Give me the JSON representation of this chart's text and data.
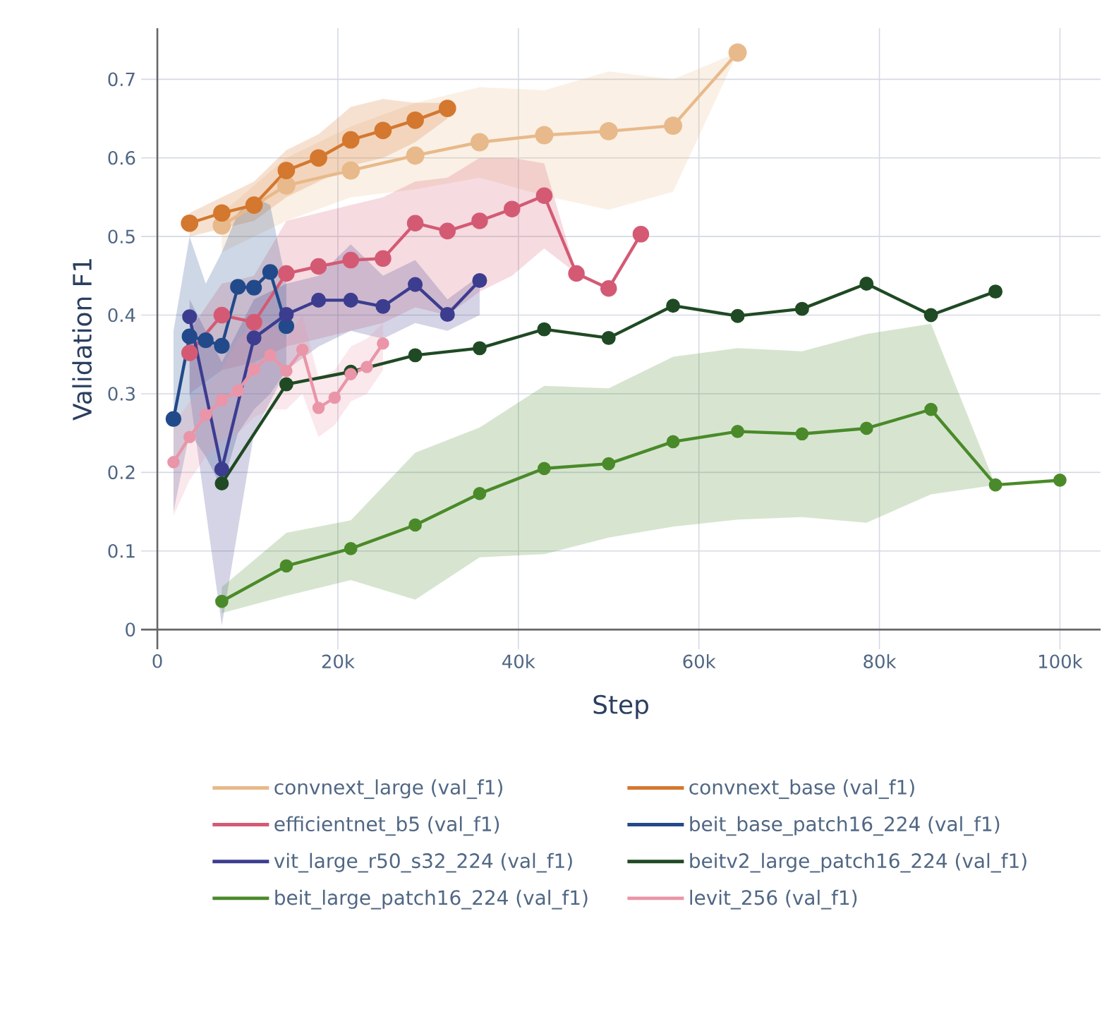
{
  "chart_data": {
    "type": "line",
    "xlabel": "Step",
    "ylabel": "Validation F1",
    "marker": "circle",
    "line_style": "solid",
    "grid": true,
    "legend": "bottom",
    "xlim": [
      -1800,
      104500
    ],
    "ylim": [
      -0.025,
      0.765
    ],
    "xticks": [
      0,
      {
        "value": 20000,
        "label": "20k"
      },
      {
        "value": 40000,
        "label": "40k"
      },
      {
        "value": 60000,
        "label": "60k"
      },
      {
        "value": 80000,
        "label": "80k"
      },
      {
        "value": 100000,
        "label": "100k"
      }
    ],
    "yticks": [
      0,
      0.1,
      0.2,
      0.3,
      0.4,
      0.5,
      0.6,
      0.7
    ],
    "series": [
      {
        "name": "convnext_large (val_f1)",
        "color": "#e8b98a",
        "x": [
          7140,
          14290,
          21430,
          28570,
          35710,
          42860,
          50000,
          57140,
          64290
        ],
        "values": [
          0.514,
          0.565,
          0.584,
          0.603,
          0.62,
          0.629,
          0.634,
          0.641,
          0.734
        ],
        "lower": [
          0.48,
          0.52,
          0.55,
          0.56,
          0.575,
          0.552,
          0.534,
          0.557,
          0.734
        ],
        "upper": [
          0.53,
          0.6,
          0.64,
          0.67,
          0.69,
          0.686,
          0.71,
          0.7,
          0.734
        ]
      },
      {
        "name": "convnext_base (val_f1)",
        "color": "#d4772f",
        "x": [
          3570,
          7140,
          10710,
          14290,
          17860,
          21430,
          25000,
          28570,
          32140
        ],
        "values": [
          0.517,
          0.53,
          0.54,
          0.584,
          0.6,
          0.623,
          0.635,
          0.648,
          0.663
        ],
        "lower": [
          0.5,
          0.51,
          0.52,
          0.55,
          0.57,
          0.59,
          0.6,
          0.62,
          0.65
        ],
        "upper": [
          0.53,
          0.55,
          0.57,
          0.61,
          0.63,
          0.665,
          0.675,
          0.67,
          0.67
        ]
      },
      {
        "name": "efficientnet_b5 (val_f1)",
        "color": "#d45a74",
        "x": [
          3570,
          7140,
          10710,
          14290,
          17860,
          21430,
          25000,
          28570,
          32140,
          35710,
          39290,
          42860,
          46430,
          50000,
          53570
        ],
        "values": [
          0.352,
          0.4,
          0.391,
          0.453,
          0.462,
          0.47,
          0.472,
          0.517,
          0.507,
          0.52,
          0.535,
          0.552,
          0.453,
          0.434,
          0.503
        ],
        "lower": [
          0.3,
          0.33,
          0.34,
          0.36,
          0.37,
          0.38,
          0.39,
          0.41,
          0.4,
          0.43,
          0.45,
          0.485,
          0.453,
          null,
          null
        ],
        "upper": [
          0.38,
          0.44,
          0.45,
          0.52,
          0.53,
          0.54,
          0.55,
          0.57,
          0.575,
          0.6,
          0.6,
          0.593,
          0.453,
          null,
          null
        ]
      },
      {
        "name": "beit_base_patch16_224 (val_f1)",
        "color": "#224a8a",
        "x": [
          1790,
          3570,
          5360,
          7140,
          8930,
          10710,
          12500,
          14290
        ],
        "values": [
          0.268,
          0.373,
          0.368,
          0.361,
          0.436,
          0.435,
          0.455,
          0.386
        ],
        "lower": [
          0.15,
          0.25,
          0.22,
          0.18,
          0.25,
          0.28,
          0.3,
          0.33
        ],
        "upper": [
          0.38,
          0.5,
          0.44,
          0.48,
          0.53,
          0.55,
          0.54,
          0.44
        ]
      },
      {
        "name": "vit_large_r50_s32_224 (val_f1)",
        "color": "#3c3d8f",
        "x": [
          3570,
          7140,
          10710,
          14290,
          17860,
          21430,
          25000,
          28570,
          32140,
          35710
        ],
        "values": [
          0.398,
          0.204,
          0.371,
          0.401,
          0.419,
          0.419,
          0.411,
          0.439,
          0.401,
          0.444
        ],
        "lower": [
          0.3,
          0.005,
          0.25,
          0.33,
          0.36,
          0.38,
          0.37,
          0.39,
          0.38,
          0.4
        ],
        "upper": [
          0.42,
          0.34,
          0.42,
          0.44,
          0.45,
          0.49,
          0.45,
          0.47,
          0.42,
          0.45
        ]
      },
      {
        "name": "beitv2_large_patch16_224 (val_f1)",
        "color": "#1f4a24",
        "x": [
          7140,
          14290,
          21430,
          28570,
          35710,
          42860,
          50000,
          57140,
          64290,
          71430,
          78570,
          85710,
          92860
        ],
        "values": [
          0.186,
          0.312,
          0.328,
          0.349,
          0.358,
          0.382,
          0.371,
          0.412,
          0.399,
          0.408,
          0.44,
          0.4,
          0.43
        ]
      },
      {
        "name": "beit_large_patch16_224 (val_f1)",
        "color": "#4a8a2a",
        "x": [
          7140,
          14290,
          21430,
          28570,
          35710,
          42860,
          50000,
          57140,
          64290,
          71430,
          78570,
          85710,
          92860,
          100000
        ],
        "values": [
          0.036,
          0.081,
          0.103,
          0.133,
          0.173,
          0.205,
          0.211,
          0.239,
          0.252,
          0.249,
          0.256,
          0.28,
          0.184,
          0.19
        ],
        "lower": [
          0.021,
          0.043,
          0.063,
          0.038,
          0.092,
          0.096,
          0.117,
          0.131,
          0.14,
          0.143,
          0.136,
          0.172,
          0.184,
          null
        ],
        "upper": [
          0.054,
          0.123,
          0.139,
          0.225,
          0.257,
          0.31,
          0.307,
          0.347,
          0.358,
          0.354,
          0.376,
          0.389,
          0.184,
          null
        ]
      },
      {
        "name": "levit_256 (val_f1)",
        "color": "#ea95a8",
        "x": [
          1790,
          3570,
          5360,
          7140,
          8930,
          10710,
          12500,
          14290,
          16070,
          17860,
          19640,
          21430,
          23210,
          25000
        ],
        "values": [
          0.213,
          0.245,
          0.273,
          0.292,
          0.304,
          0.331,
          0.349,
          0.329,
          0.356,
          0.282,
          0.295,
          0.325,
          0.334,
          0.364
        ],
        "lower": [
          0.145,
          0.19,
          0.22,
          0.24,
          0.25,
          0.27,
          0.28,
          0.28,
          0.3,
          0.245,
          0.26,
          0.29,
          0.3,
          0.33
        ],
        "upper": [
          0.26,
          0.29,
          0.31,
          0.33,
          0.37,
          0.39,
          0.39,
          0.37,
          0.4,
          0.32,
          0.33,
          0.36,
          0.37,
          0.39
        ]
      }
    ]
  }
}
